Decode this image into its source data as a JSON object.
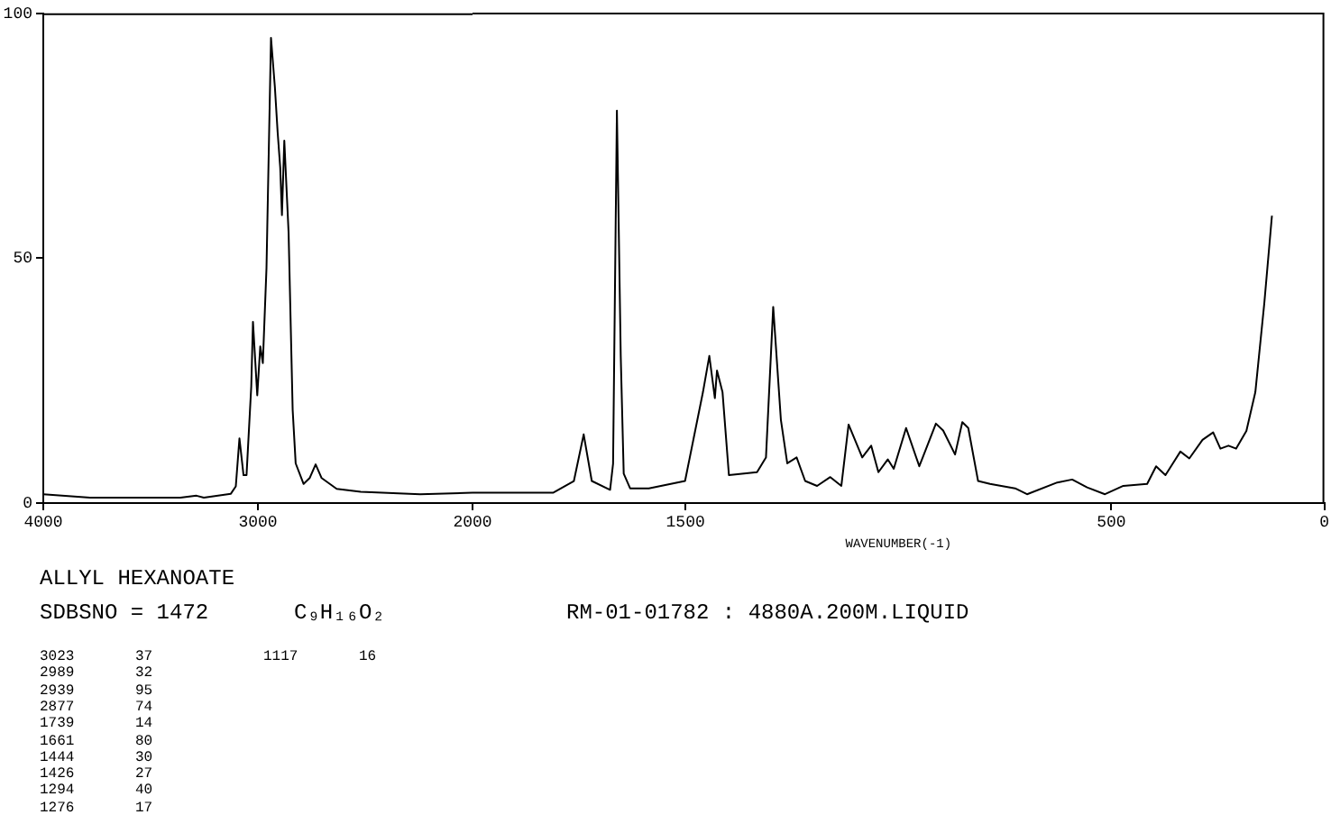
{
  "chart_data": [
    {
      "type": "line",
      "title": "ALLYL HEXANOATE",
      "subtitle": "SDBSNO = 1472",
      "annotations": [
        "C₉H₁₆O₂",
        "RM-01-01782 : 4880A.200M.LIQUID",
        "3023 37",
        "2989 32",
        "2939 95",
        "2877 74",
        "1739 14",
        "1661 80",
        "1444 30",
        "1426 27",
        "1294 40",
        "1276 17",
        "1117 16"
      ],
      "xlim": [
        4000,
        2000
      ],
      "xticks": [
        4000,
        3000,
        {
          "value": 2000,
          "label": null
        }
      ],
      "ylim": [
        0,
        100
      ],
      "yticks": [
        0,
        50,
        100
      ],
      "grid": false,
      "legend": false,
      "marker": "none",
      "line_style": "solid",
      "series": [
        {
          "color": "#000000",
          "x": [
            4000,
            3782,
            3361,
            3286,
            3252,
            3126,
            3103,
            3086,
            3067,
            3053,
            3031,
            3023,
            3003,
            2989,
            2977,
            2960,
            2939,
            2921,
            2908,
            2896,
            2888,
            2877,
            2857,
            2838,
            2824,
            2787,
            2759,
            2731,
            2703,
            2633,
            2521,
            2244,
            2000
          ],
          "values": [
            1.8,
            1.1,
            1.1,
            1.5,
            1.1,
            1.9,
            3.4,
            13.2,
            5.7,
            5.7,
            23.8,
            37,
            22,
            32,
            28.6,
            48,
            95,
            85,
            75.7,
            68.5,
            58.8,
            74,
            55.2,
            19,
            8.1,
            3.9,
            5.1,
            7.9,
            5.1,
            2.9,
            2.3,
            1.8,
            2.1
          ]
        }
      ]
    },
    {
      "type": "line",
      "xlabel": "WAVENUMBER(-1)",
      "xlim": [
        2000,
        0
      ],
      "xticks": [
        2000,
        1500,
        500,
        0
      ],
      "ylim": [
        0,
        100
      ],
      "yticks": [
        0,
        50,
        100
      ],
      "tick_labels": "x",
      "grid": false,
      "legend": false,
      "marker": "none",
      "line_style": "solid",
      "series": [
        {
          "color": "#000000",
          "x": [
            2000,
            1980,
            1811,
            1762,
            1739,
            1720,
            1677,
            1670,
            1661,
            1652,
            1645,
            1630,
            1586,
            1501,
            1459,
            1444,
            1431,
            1426,
            1413,
            1398,
            1332,
            1311,
            1294,
            1276,
            1261,
            1239,
            1219,
            1191,
            1160,
            1134,
            1117,
            1085,
            1064,
            1047,
            1025,
            1011,
            982,
            951,
            912,
            895,
            867,
            850,
            836,
            813,
            785,
            726,
            698,
            627,
            592,
            557,
            515,
            472,
            416,
            395,
            373,
            338,
            317,
            286,
            261,
            244,
            225,
            207,
            183,
            162,
            141,
            123
          ],
          "values": [
            2.1,
            2.1,
            2.1,
            4.5,
            14,
            4.5,
            2.7,
            8,
            80,
            30,
            6,
            3,
            3,
            4.5,
            22.6,
            30,
            21.4,
            27,
            22.6,
            5.7,
            6.3,
            9.3,
            40,
            17,
            8.1,
            9.3,
            4.5,
            3.5,
            5.3,
            3.5,
            16,
            9.3,
            11.7,
            6.3,
            8.9,
            7,
            15.3,
            7.5,
            16.2,
            14.8,
            9.9,
            16.5,
            15.3,
            4.5,
            3.9,
            3,
            1.8,
            4.2,
            4.8,
            3.2,
            1.8,
            3.5,
            3.9,
            7.5,
            5.7,
            10.5,
            9.1,
            12.9,
            14.4,
            11.1,
            11.7,
            11.1,
            14.7,
            22.6,
            40.7,
            58.6
          ]
        }
      ]
    }
  ]
}
